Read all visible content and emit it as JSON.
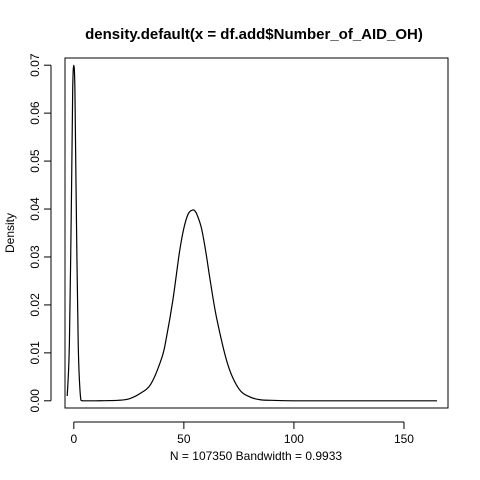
{
  "chart_data": {
    "type": "line",
    "title": "density.default(x = df.add$Number_of_AID_OH)",
    "xlabel": "N = 107350   Bandwidth = 0.9933",
    "ylabel": "Density",
    "xlim": [
      -4,
      170
    ],
    "ylim": [
      -0.0015,
      0.0715
    ],
    "x_ticks": [
      0,
      50,
      100,
      150
    ],
    "x_tick_labels": [
      "0",
      "50",
      "100",
      "150"
    ],
    "y_ticks": [
      0.0,
      0.01,
      0.02,
      0.03,
      0.04,
      0.05,
      0.06,
      0.07
    ],
    "y_tick_labels": [
      "0.00",
      "0.01",
      "0.02",
      "0.03",
      "0.04",
      "0.05",
      "0.06",
      "0.07"
    ],
    "grid": false,
    "legend": "none",
    "series": [
      {
        "x": [
          -3,
          -2,
          -1,
          -0.5,
          0,
          0.5,
          1,
          2,
          3,
          4,
          10,
          20,
          25,
          30,
          35,
          40,
          42,
          45,
          48,
          50,
          52,
          54,
          55,
          56,
          58,
          60,
          62,
          65,
          70,
          75,
          80,
          85,
          90,
          100,
          120,
          140,
          165
        ],
        "y": [
          0.001,
          0.012,
          0.045,
          0.065,
          0.07,
          0.065,
          0.045,
          0.012,
          0.001,
          0.0,
          0.0,
          0.0001,
          0.0004,
          0.0015,
          0.0035,
          0.009,
          0.013,
          0.021,
          0.031,
          0.036,
          0.039,
          0.0398,
          0.0396,
          0.0388,
          0.036,
          0.031,
          0.025,
          0.017,
          0.0075,
          0.0025,
          0.0008,
          0.0002,
          0.0001,
          0.0,
          0.0,
          0.0,
          0.0
        ]
      }
    ]
  }
}
